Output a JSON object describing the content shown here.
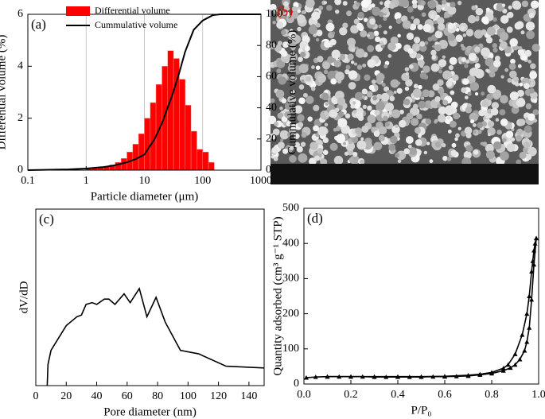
{
  "chart_data": [
    {
      "type": "histogram",
      "panel_label": "(a)",
      "xlabel": "Particle diameter (μm)",
      "ylabel": "Differential volume (%)",
      "y2label": "Cummulative volume (%)",
      "xscale": "log",
      "xlim": [
        0.1,
        1000
      ],
      "xticks": [
        0.1,
        1,
        10,
        100,
        1000
      ],
      "ylim": [
        0,
        6
      ],
      "yticks": [
        0,
        2,
        4,
        6
      ],
      "y2lim": [
        0,
        100
      ],
      "y2ticks": [
        0,
        20,
        40,
        60,
        80,
        100
      ],
      "grid": true,
      "legend": "upper left",
      "series": [
        {
          "name": "Differential volume",
          "color": "#ff0000",
          "bins": [
            1,
            1.26,
            1.58,
            2,
            2.51,
            3.16,
            3.98,
            5.01,
            6.31,
            7.94,
            10,
            12.6,
            15.8,
            20,
            25.1,
            31.6,
            39.8,
            50.1,
            63.1,
            79.4,
            100,
            126,
            158
          ],
          "counts": [
            0.05,
            0.08,
            0.1,
            0.15,
            0.2,
            0.3,
            0.45,
            0.7,
            1.0,
            1.4,
            2.0,
            2.6,
            3.3,
            4.0,
            4.6,
            4.3,
            3.5,
            2.5,
            1.5,
            0.8,
            0.7,
            0.3
          ]
        },
        {
          "name": "Cummulative volume",
          "color": "#000000",
          "axis": "y2",
          "type": "line",
          "x": [
            0.1,
            0.5,
            1,
            2,
            3,
            5,
            7,
            10,
            15,
            20,
            25,
            30,
            40,
            50,
            70,
            100,
            150,
            200,
            1000
          ],
          "values": [
            0,
            0.5,
            1,
            2,
            3,
            5,
            7,
            10,
            20,
            30,
            40,
            48,
            63,
            76,
            90,
            96,
            99.5,
            100,
            100
          ]
        }
      ]
    },
    {
      "type": "image",
      "panel_label": "(b)"
    },
    {
      "type": "line",
      "panel_label": "(c)",
      "xlabel": "Pore diameter (nm)",
      "ylabel": "dV/dD",
      "xlim": [
        0,
        150
      ],
      "xticks": [
        0,
        20,
        40,
        60,
        80,
        100,
        120,
        140
      ],
      "ylim": [
        0,
        1
      ],
      "series": [
        {
          "color": "#000000",
          "x": [
            7.5,
            8,
            10,
            15,
            20,
            27,
            30,
            33,
            37,
            40,
            45,
            48,
            52,
            58,
            62,
            68,
            73,
            79,
            85,
            95,
            107,
            125,
            150
          ],
          "values": [
            0,
            0.12,
            0.2,
            0.27,
            0.34,
            0.39,
            0.4,
            0.46,
            0.47,
            0.46,
            0.49,
            0.49,
            0.46,
            0.52,
            0.47,
            0.55,
            0.39,
            0.5,
            0.36,
            0.2,
            0.18,
            0.11,
            0.1
          ]
        }
      ]
    },
    {
      "type": "line",
      "panel_label": "(d)",
      "xlabel": "P/P₀",
      "ylabel": "Quantity adsorbed (cm³ g⁻¹ STP)",
      "marker": "triangle",
      "xlim": [
        0,
        1
      ],
      "xticks": [
        {
          "value": 0,
          "label": "0.0"
        },
        0.2,
        0.4,
        0.6,
        0.8,
        {
          "value": 1,
          "label": "1.0"
        }
      ],
      "ylim": [
        0,
        500
      ],
      "yticks": [
        0,
        100,
        200,
        300,
        400,
        500
      ],
      "series": [
        {
          "color": "#000000",
          "x": [
            0.01,
            0.05,
            0.1,
            0.15,
            0.2,
            0.25,
            0.3,
            0.35,
            0.4,
            0.45,
            0.5,
            0.55,
            0.6,
            0.65,
            0.7,
            0.75,
            0.8,
            0.85,
            0.88,
            0.9,
            0.92,
            0.94,
            0.95,
            0.96,
            0.97,
            0.98,
            0.99
          ],
          "values": [
            18,
            20,
            21,
            21,
            21,
            21,
            20,
            20,
            20,
            20,
            20,
            21,
            21,
            22,
            23,
            26,
            30,
            38,
            46,
            55,
            70,
            95,
            120,
            160,
            240,
            340,
            415
          ]
        },
        {
          "color": "#000000",
          "x": [
            0.99,
            0.985,
            0.98,
            0.975,
            0.97,
            0.96,
            0.95,
            0.93,
            0.9,
            0.87,
            0.85,
            0.8,
            0.75,
            0.7,
            0.6,
            0.5,
            0.4,
            0.3,
            0.2,
            0.1
          ],
          "values": [
            415,
            400,
            380,
            350,
            320,
            250,
            200,
            140,
            85,
            55,
            45,
            33,
            28,
            25,
            22,
            21,
            21,
            21,
            21,
            21
          ]
        }
      ]
    }
  ]
}
